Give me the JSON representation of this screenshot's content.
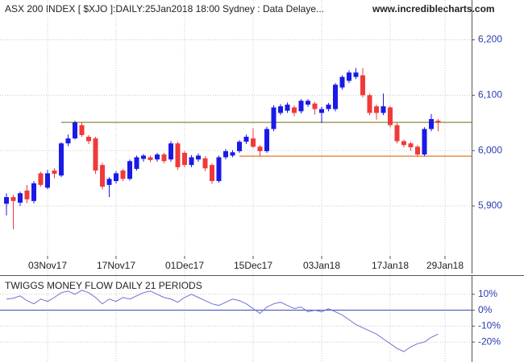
{
  "chart_data": [
    {
      "type": "candlestick",
      "title": "ASX 200 INDEX [ $XJO ]:DAILY:25Jan2018 18:00 Sydney : Data Delaye...",
      "source": "www.incrediblecharts.com",
      "categories": [
        null,
        null,
        null,
        null,
        null,
        null,
        "03Nov17",
        null,
        null,
        null,
        null,
        null,
        null,
        null,
        null,
        null,
        "17Nov17",
        null,
        null,
        null,
        null,
        null,
        null,
        null,
        null,
        null,
        "01Dec17",
        null,
        null,
        null,
        null,
        null,
        null,
        null,
        null,
        null,
        "15Dec17",
        null,
        null,
        null,
        null,
        null,
        null,
        null,
        null,
        null,
        "03Jan18",
        null,
        null,
        null,
        null,
        null,
        null,
        null,
        null,
        null,
        "17Jan18",
        null,
        null,
        null,
        null,
        null,
        null,
        null,
        "29Jan18"
      ],
      "open": [
        5904,
        5916,
        5906,
        5928,
        5909,
        5959,
        5933,
        5964,
        5955,
        6013,
        6022,
        6046,
        6025,
        6022,
        5974,
        5938,
        5945,
        5964,
        5949,
        5967,
        5985,
        5988,
        5984,
        5993,
        5984,
        6013,
        5996,
        5974,
        5984,
        5986,
        5974,
        5945,
        5988,
        5991,
        5999,
        6016,
        6022,
        6007,
        5999,
        6039,
        6068,
        6072,
        6078,
        6071,
        6083,
        6085,
        6068,
        6075,
        6075,
        6114,
        6126,
        6133,
        6136,
        6100,
        6080,
        6068,
        6078,
        6046,
        6017,
        6013,
        6007,
        5993,
        6039,
        6054,
        null
      ],
      "high": [
        5923,
        5920,
        5926,
        5938,
        5945,
        5962,
        5965,
        5968,
        6015,
        6029,
        6054,
        6051,
        6028,
        6025,
        5978,
        5952,
        5963,
        5967,
        5984,
        5991,
        5994,
        5991,
        5996,
        5996,
        6017,
        6016,
        5999,
        5992,
        5995,
        5990,
        5977,
        5991,
        6003,
        6001,
        6019,
        6029,
        6040,
        6010,
        6043,
        6082,
        6084,
        6087,
        6082,
        6093,
        6093,
        6088,
        6079,
        6086,
        6122,
        6136,
        6145,
        6149,
        6149,
        6103,
        6083,
        6103,
        6081,
        6050,
        6020,
        6016,
        6010,
        6042,
        6066,
        6057,
        null
      ],
      "low": [
        5883,
        5858,
        5900,
        5905,
        5905,
        5935,
        5930,
        5950,
        5952,
        6008,
        6020,
        6025,
        6012,
        5958,
        5930,
        5916,
        5941,
        5945,
        5946,
        5964,
        5980,
        5979,
        5980,
        5977,
        5980,
        5965,
        5970,
        5970,
        5980,
        5963,
        5940,
        5942,
        5984,
        5988,
        5996,
        6012,
        6004,
        5990,
        5996,
        6035,
        6064,
        6068,
        6062,
        6067,
        6079,
        6065,
        6050,
        6071,
        6071,
        6110,
        6122,
        6129,
        6096,
        6064,
        6056,
        6064,
        6042,
        6013,
        6006,
        6000,
        5989,
        5990,
        6035,
        6035,
        null
      ],
      "close": [
        5916,
        5909,
        5923,
        5912,
        5941,
        5938,
        5959,
        5958,
        6013,
        6022,
        6051,
        6028,
        6017,
        5964,
        5935,
        5949,
        5959,
        5949,
        5981,
        5988,
        5991,
        5983,
        5993,
        5981,
        6013,
        5970,
        5974,
        5988,
        5991,
        5968,
        5945,
        5988,
        5999,
        5997,
        6016,
        6025,
        6007,
        5999,
        6039,
        6078,
        6080,
        6083,
        6068,
        6090,
        6090,
        6075,
        6075,
        6083,
        6119,
        6133,
        6141,
        6141,
        6100,
        6068,
        6068,
        6080,
        6046,
        6017,
        6010,
        6006,
        5993,
        6039,
        6057,
        6051,
        null
      ],
      "up_color": "#1a1ae6",
      "down_color": "#f03a3a",
      "hlines": [
        {
          "value": 6051,
          "start": 8,
          "color": "#8a8a3c"
        },
        {
          "value": 5990,
          "start": 34,
          "color": "#e07a20"
        }
      ],
      "ylim": [
        5810,
        6240
      ],
      "yticks": [
        {
          "value": 6200,
          "label": "6,200"
        },
        {
          "value": 6100,
          "label": "6,100"
        },
        {
          "value": 6000,
          "label": "6,000"
        },
        {
          "value": 5900,
          "label": "5,900"
        }
      ],
      "grid": true
    },
    {
      "type": "line",
      "title": "TWIGGS MONEY FLOW DAILY 21 PERIODS",
      "values": [
        7,
        7.5,
        9,
        6,
        4,
        7,
        5.5,
        8,
        11,
        12,
        10,
        12.5,
        11,
        8,
        4,
        7,
        5.5,
        8,
        7,
        9,
        11,
        12,
        10,
        8,
        7,
        5,
        8,
        10,
        8,
        6,
        4,
        3,
        5,
        7,
        6,
        4,
        1,
        -2,
        2,
        4,
        5,
        3,
        1,
        2,
        -1,
        0,
        -1,
        1,
        -1,
        -3,
        -6,
        -9,
        -11,
        -13,
        -15,
        -18,
        -21,
        -24,
        -26,
        -23,
        -21,
        -20,
        -17,
        -15,
        null
      ],
      "color": "#7070d0",
      "zero_color": "#3040b0",
      "ylim": [
        -31,
        20
      ],
      "yticks": [
        {
          "value": 10,
          "label": "10%"
        },
        {
          "value": 0,
          "label": "0%"
        },
        {
          "value": -10,
          "label": "-10%"
        },
        {
          "value": -20,
          "label": "-20%"
        }
      ],
      "grid": true
    }
  ]
}
